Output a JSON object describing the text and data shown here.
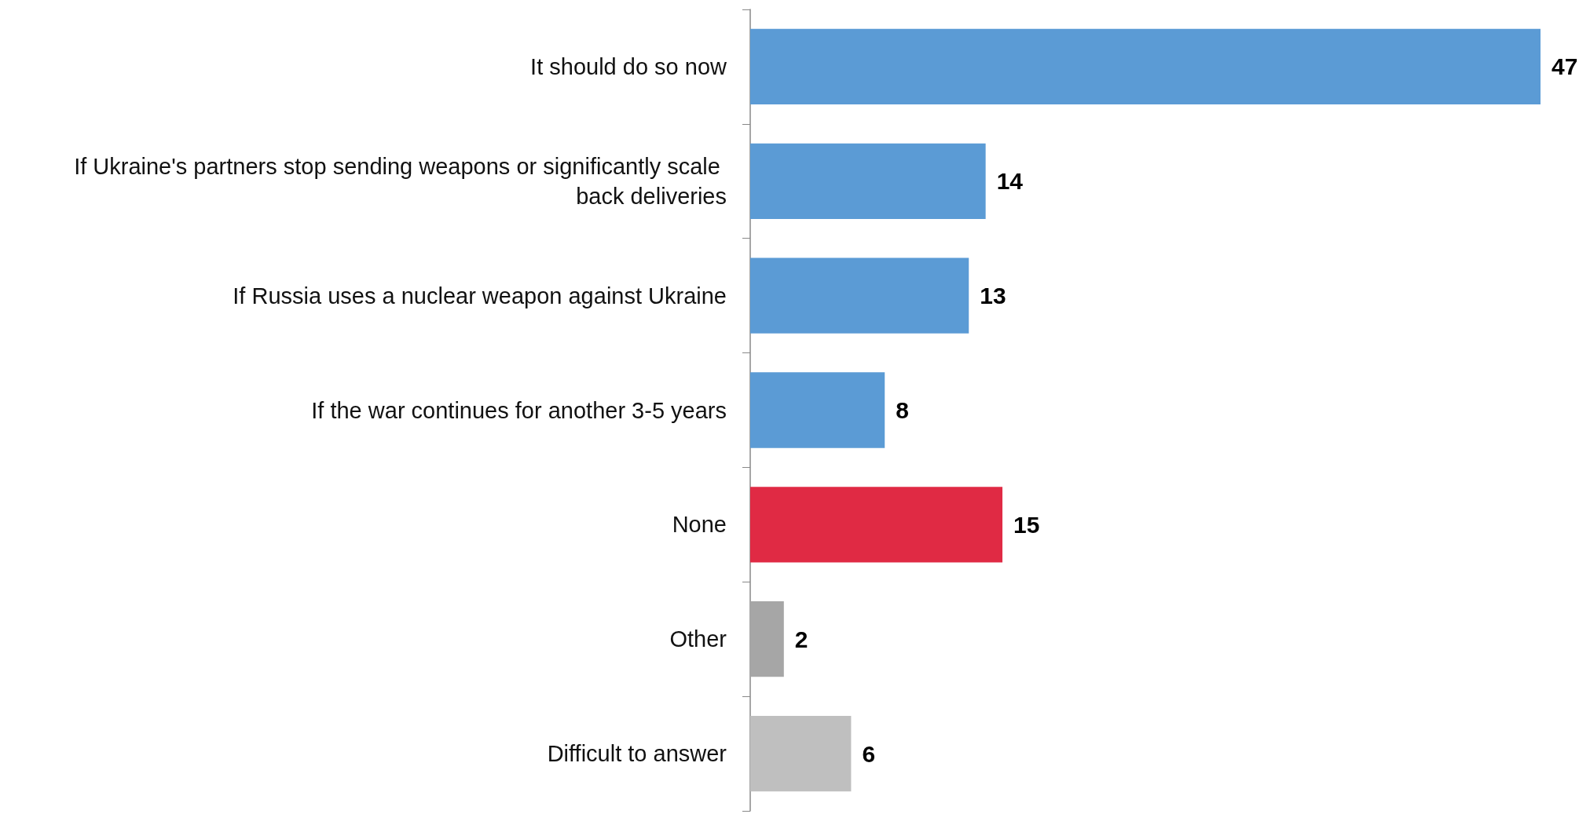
{
  "chart_data": {
    "type": "bar",
    "orientation": "horizontal",
    "data_labels": true,
    "categories": [
      "It should do so now",
      "If Ukraine's partners stop sending weapons or significantly scale back deliveries",
      "If Russia uses a nuclear weapon against Ukraine",
      "If the war continues for another 3-5 years",
      "None",
      "Other",
      "Difficult to answer"
    ],
    "values": [
      47,
      14,
      13,
      8,
      15,
      2,
      6
    ],
    "colors": [
      "#5b9bd5",
      "#5b9bd5",
      "#5b9bd5",
      "#5b9bd5",
      "#e02a44",
      "#a6a6a6",
      "#bfbfbf"
    ]
  }
}
